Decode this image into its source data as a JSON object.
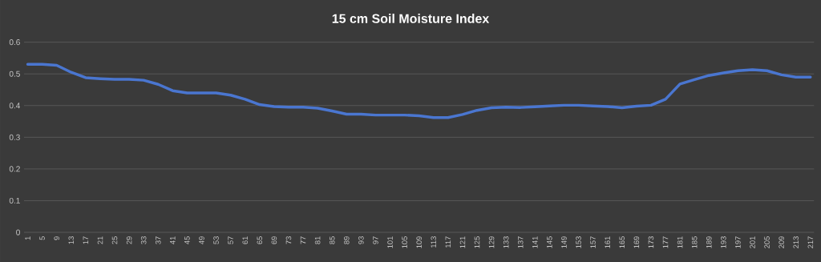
{
  "chart_data": {
    "type": "line",
    "title": "15 cm Soil Moisture Index",
    "x": [
      1,
      5,
      9,
      13,
      17,
      21,
      25,
      29,
      33,
      37,
      41,
      45,
      49,
      53,
      57,
      61,
      65,
      69,
      73,
      77,
      81,
      85,
      89,
      93,
      97,
      101,
      105,
      109,
      113,
      117,
      121,
      125,
      129,
      133,
      137,
      141,
      145,
      149,
      153,
      157,
      161,
      165,
      169,
      173,
      177,
      181,
      185,
      189,
      193,
      197,
      201,
      205,
      209,
      213,
      217
    ],
    "values": [
      0.53,
      0.53,
      0.527,
      0.505,
      0.488,
      0.485,
      0.483,
      0.483,
      0.48,
      0.467,
      0.447,
      0.44,
      0.44,
      0.44,
      0.433,
      0.42,
      0.403,
      0.397,
      0.395,
      0.395,
      0.392,
      0.383,
      0.373,
      0.373,
      0.37,
      0.37,
      0.37,
      0.368,
      0.362,
      0.362,
      0.372,
      0.385,
      0.393,
      0.395,
      0.394,
      0.396,
      0.399,
      0.401,
      0.401,
      0.399,
      0.397,
      0.393,
      0.398,
      0.401,
      0.42,
      0.468,
      0.482,
      0.495,
      0.503,
      0.51,
      0.513,
      0.51,
      0.497,
      0.49,
      0.49
    ],
    "color": "#4a76d0",
    "xlim": [
      0,
      218
    ],
    "xticks": [
      1,
      5,
      9,
      13,
      17,
      21,
      25,
      29,
      33,
      37,
      41,
      45,
      49,
      53,
      57,
      61,
      65,
      69,
      73,
      77,
      81,
      85,
      89,
      93,
      97,
      101,
      105,
      109,
      113,
      117,
      121,
      125,
      129,
      133,
      137,
      141,
      145,
      149,
      153,
      157,
      161,
      165,
      169,
      173,
      177,
      181,
      185,
      189,
      193,
      197,
      201,
      205,
      209,
      213,
      217
    ],
    "ylim": [
      0,
      0.6
    ],
    "yticks": [
      0,
      0.1,
      0.2,
      0.3,
      0.4,
      0.5,
      0.6
    ],
    "grid": "y"
  }
}
